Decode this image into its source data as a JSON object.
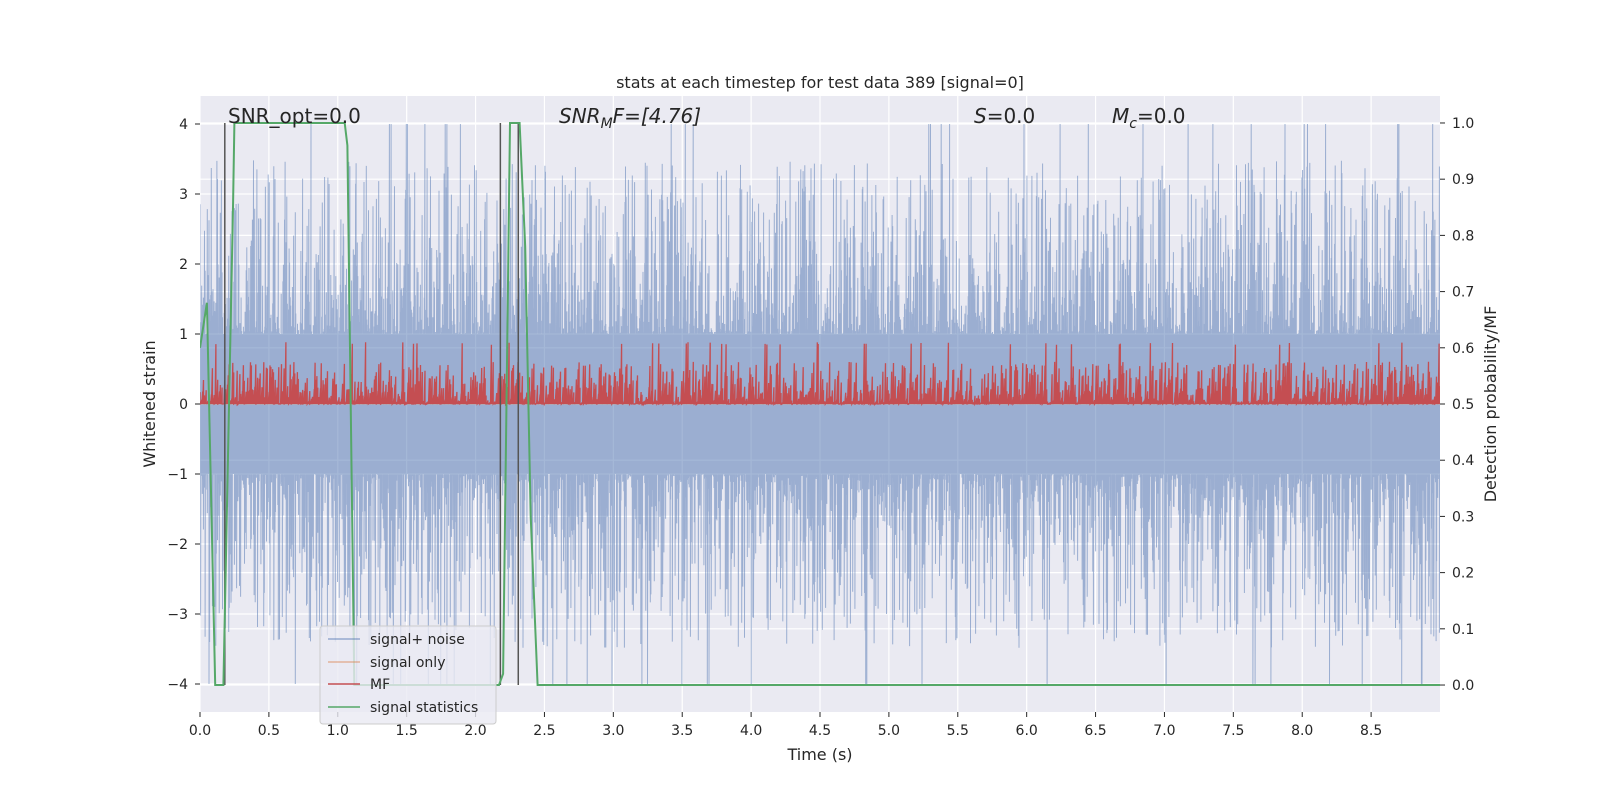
{
  "chart_data": {
    "type": "line",
    "title": "stats at each timestep for test data 389 [signal=0]",
    "xlabel": "Time (s)",
    "ylabel": "Whitened strain",
    "y2label": "Detection probability/MF",
    "xlim": [
      0.0,
      9.0
    ],
    "ylim": [
      -4.4,
      4.4
    ],
    "y2lim": [
      -0.048,
      1.048
    ],
    "x_ticks": [
      "0.0",
      "0.5",
      "1.0",
      "1.5",
      "2.0",
      "2.5",
      "3.0",
      "3.5",
      "4.0",
      "4.5",
      "5.0",
      "5.5",
      "6.0",
      "6.5",
      "7.0",
      "7.5",
      "8.0",
      "8.5"
    ],
    "y_ticks": [
      "−4",
      "−3",
      "−2",
      "−1",
      "0",
      "1",
      "2",
      "3",
      "4"
    ],
    "y2_ticks": [
      "0.0",
      "0.1",
      "0.2",
      "0.3",
      "0.4",
      "0.5",
      "0.6",
      "0.7",
      "0.8",
      "0.9",
      "1.0"
    ],
    "grid": true,
    "legend_position": "bottom-left",
    "annotations": [
      {
        "id": "snr_opt",
        "text": "SNR_opt=0.0"
      },
      {
        "id": "snr_mf",
        "text": "SNR_MF=[4.76]",
        "base": "SNR",
        "sub": "M",
        "tail": "F=[4.76]"
      },
      {
        "id": "s",
        "text": "S=0.0",
        "base": "S",
        "tail": "=0.0"
      },
      {
        "id": "mc",
        "text": "M_c=0.0",
        "base": "M",
        "sub": "c",
        "tail": "=0.0"
      }
    ],
    "series": [
      {
        "name": "signal+ noise",
        "color": "#4c72b0",
        "axis": "left",
        "kind": "noise",
        "envelope_max": 4.0,
        "envelope_min": -4.0
      },
      {
        "name": "signal only",
        "color": "#dd8452",
        "axis": "left",
        "kind": "flat",
        "value": 0.0
      },
      {
        "name": "MF",
        "color": "#c44e52",
        "axis": "right",
        "kind": "noise",
        "baseline": 0.5,
        "peak": 0.62
      },
      {
        "name": "signal statistics",
        "color": "#55a868",
        "axis": "right",
        "kind": "step",
        "x": [
          0.0,
          0.05,
          0.11,
          0.17,
          0.24,
          0.25,
          1.05,
          1.07,
          1.12,
          1.75,
          2.17,
          2.2,
          2.25,
          2.32,
          2.36,
          2.4,
          2.45,
          9.0
        ],
        "y": [
          0.6,
          0.68,
          0.0,
          0.0,
          0.86,
          1.0,
          1.0,
          0.96,
          0.0,
          0.0,
          0.0,
          0.02,
          1.0,
          1.0,
          0.78,
          0.3,
          0.0,
          0.0
        ]
      }
    ],
    "vlines": [
      {
        "x": 0.18,
        "ymin": 0.0,
        "ymax": 1.0,
        "color": "#555555"
      },
      {
        "x": 2.18,
        "ymin": 0.0,
        "ymax": 1.0,
        "color": "#555555"
      },
      {
        "x": 2.31,
        "ymin": 0.0,
        "ymax": 1.0,
        "color": "#555555"
      }
    ]
  }
}
